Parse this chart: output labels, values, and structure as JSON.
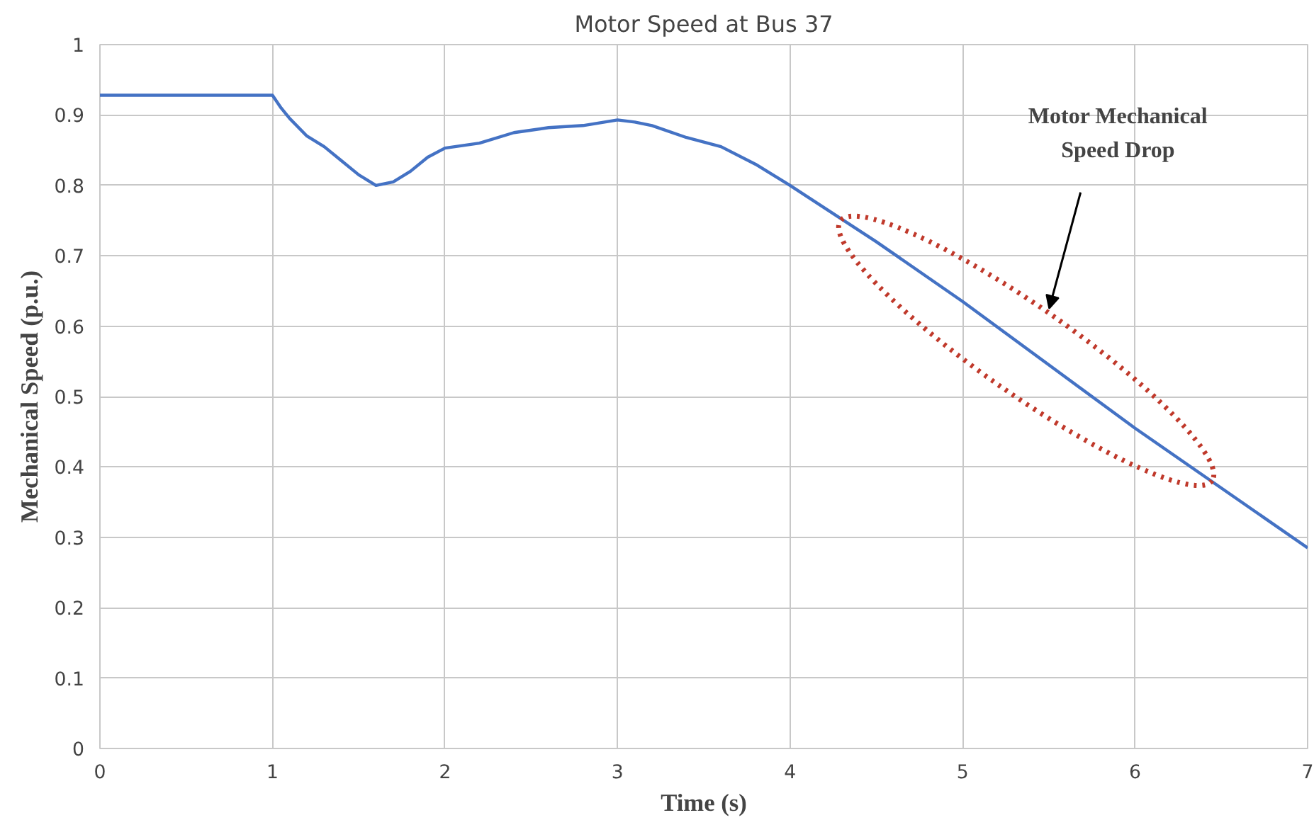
{
  "chart_data": {
    "type": "line",
    "title": "Motor Speed at Bus 37",
    "xlabel": "Time (s)",
    "ylabel": "Mechanical Speed (p.u.)",
    "x": [
      0,
      0.5,
      1,
      1.05,
      1.1,
      1.2,
      1.3,
      1.4,
      1.5,
      1.6,
      1.7,
      1.8,
      1.9,
      2,
      2.2,
      2.4,
      2.6,
      2.8,
      3,
      3.1,
      3.2,
      3.4,
      3.6,
      3.8,
      4,
      4.5,
      5,
      5.5,
      6,
      6.5,
      7
    ],
    "series": [
      {
        "color": "#4472c4",
        "values": [
          0.928,
          0.928,
          0.928,
          0.91,
          0.895,
          0.87,
          0.855,
          0.835,
          0.815,
          0.8,
          0.805,
          0.82,
          0.84,
          0.853,
          0.86,
          0.875,
          0.882,
          0.885,
          0.893,
          0.89,
          0.885,
          0.868,
          0.855,
          0.83,
          0.8,
          0.72,
          0.635,
          0.545,
          0.455,
          0.37,
          0.285
        ]
      }
    ],
    "xlim": [
      0,
      7
    ],
    "ylim": [
      0,
      1
    ],
    "xticks": [
      0,
      1,
      2,
      3,
      4,
      5,
      6,
      7
    ],
    "yticks": [
      0,
      0.1,
      0.2,
      0.3,
      0.4,
      0.5,
      0.6,
      0.7,
      0.8,
      0.9,
      1
    ],
    "grid": true,
    "marker": "none",
    "line_style": "solid",
    "annotations": [
      "Motor Mechanical\nSpeed Drop"
    ]
  }
}
